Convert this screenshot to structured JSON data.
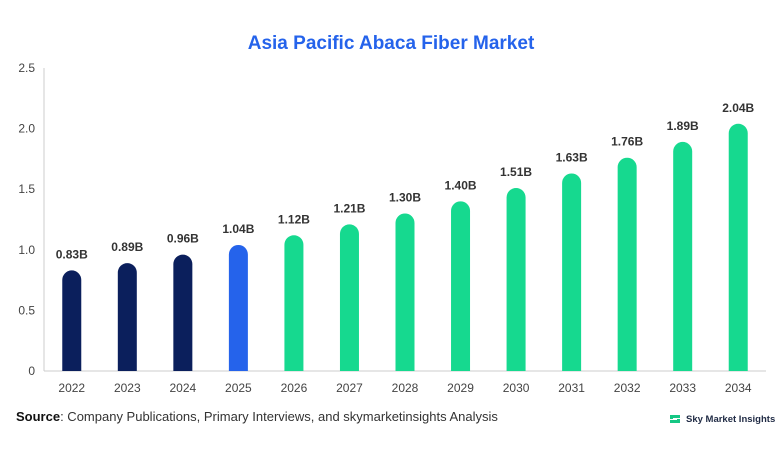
{
  "chart_data": {
    "type": "bar",
    "title": "Asia Pacific Abaca Fiber Market",
    "categories": [
      "2022",
      "2023",
      "2024",
      "2025",
      "2026",
      "2027",
      "2028",
      "2029",
      "2030",
      "2031",
      "2032",
      "2033",
      "2034"
    ],
    "values": [
      0.83,
      0.89,
      0.96,
      1.04,
      1.12,
      1.21,
      1.3,
      1.4,
      1.51,
      1.63,
      1.76,
      1.89,
      2.04
    ],
    "data_labels": [
      "0.83B",
      "0.89B",
      "0.96B",
      "1.04B",
      "1.12B",
      "1.21B",
      "1.30B",
      "1.40B",
      "1.51B",
      "1.63B",
      "1.76B",
      "1.89B",
      "2.04B"
    ],
    "bar_colors": [
      "#0b1f5c",
      "#0b1f5c",
      "#0b1f5c",
      "#2563eb",
      "#16d98f",
      "#16d98f",
      "#16d98f",
      "#16d98f",
      "#16d98f",
      "#16d98f",
      "#16d98f",
      "#16d98f",
      "#16d98f"
    ],
    "ylim": [
      0,
      2.5
    ],
    "yticks": [
      "0",
      "0.5",
      "1.0",
      "1.5",
      "2.0",
      "2.5"
    ],
    "xlabel": "",
    "ylabel": "",
    "grid": false
  },
  "footer": {
    "source_label": "Source",
    "source_text": ": Company Publications, Primary Interviews, and skymarketinsights Analysis",
    "brand_name": "Sky Market Insights"
  }
}
